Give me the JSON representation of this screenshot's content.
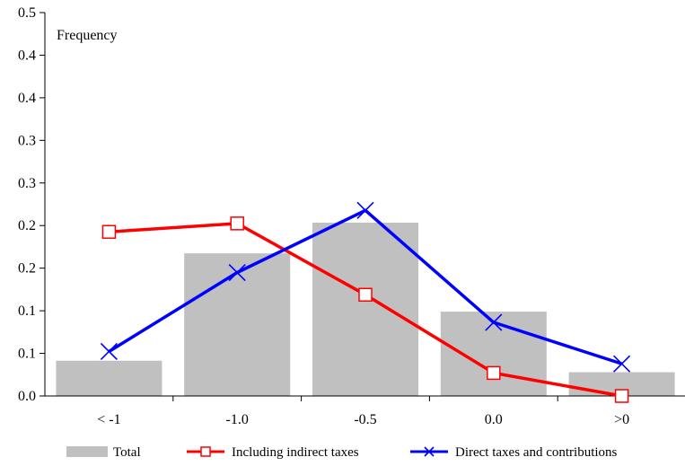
{
  "chart_data": {
    "type": "bar",
    "title": "",
    "annotation": "Frequency",
    "xlabel": "",
    "ylabel": "",
    "categories": [
      "< -1",
      "-1.0",
      "-0.5",
      "0.0",
      ">0"
    ],
    "ylim": [
      0,
      0.5
    ],
    "y_tick_labels": [
      "0.0",
      "0.1",
      "0.1",
      "0.2",
      "0.2",
      "0.3",
      "0.3",
      "0.4",
      "0.4",
      "0.5"
    ],
    "grid": false,
    "legend_position": "bottom",
    "series": [
      {
        "name": "Total",
        "kind": "bar",
        "color": "#c0c0c0",
        "values": [
          0.046,
          0.186,
          0.226,
          0.11,
          0.031
        ]
      },
      {
        "name": "Including indirect taxes",
        "kind": "line",
        "marker": "square",
        "color": "#ff0000",
        "values": [
          0.214,
          0.225,
          0.132,
          0.03,
          0.0
        ]
      },
      {
        "name": "Direct taxes and contributions",
        "kind": "line",
        "marker": "x",
        "color": "#0000ff",
        "values": [
          0.058,
          0.161,
          0.242,
          0.096,
          0.042
        ]
      }
    ]
  }
}
